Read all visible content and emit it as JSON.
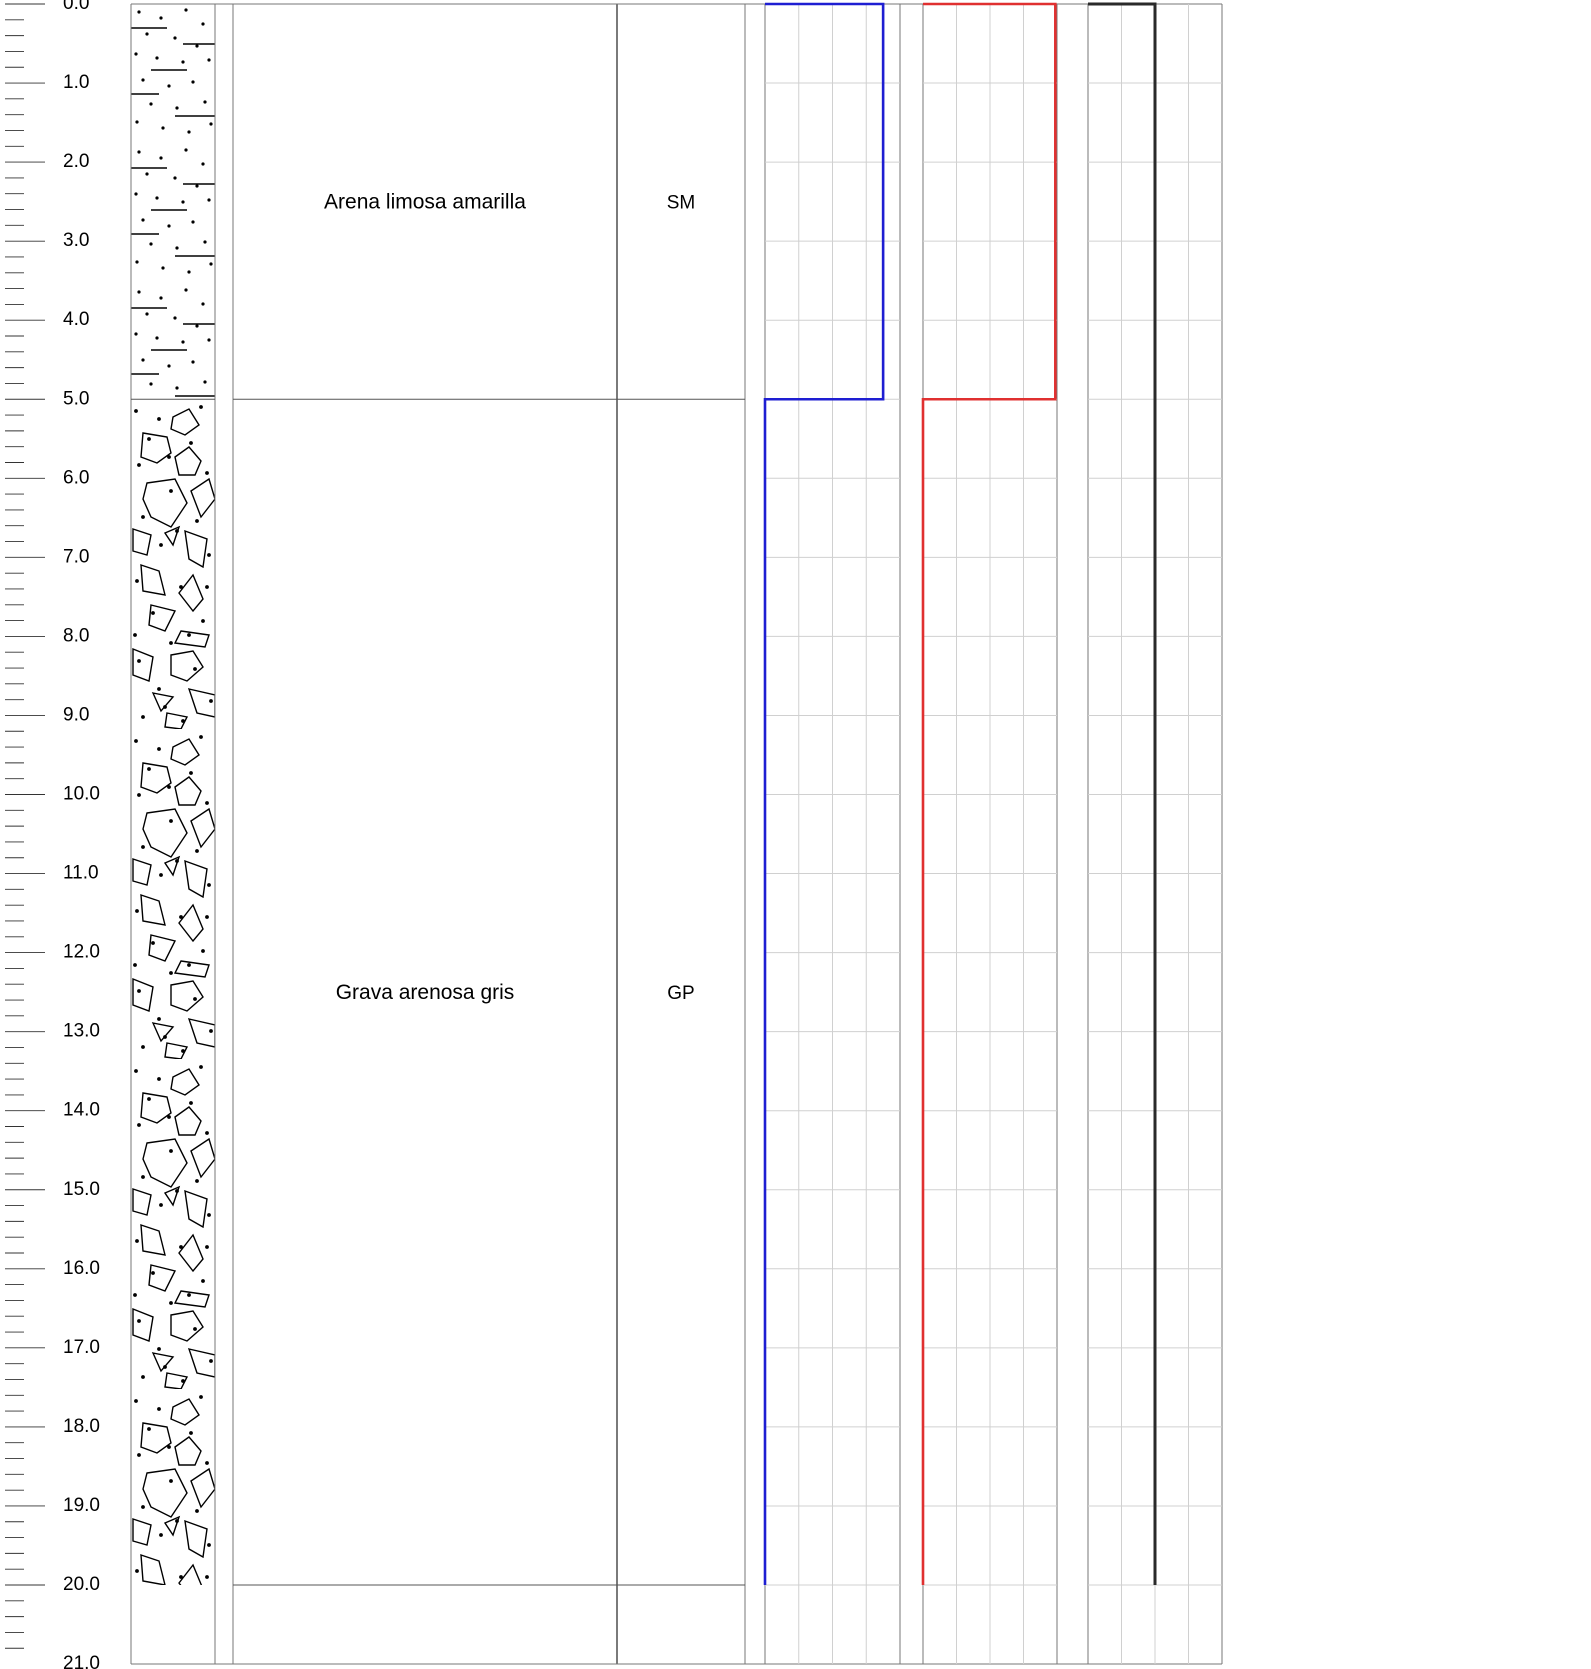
{
  "depth_scale": {
    "labels": [
      "0.0",
      "1.0",
      "2.0",
      "3.0",
      "4.0",
      "5.0",
      "6.0",
      "7.0",
      "8.0",
      "9.0",
      "10.0",
      "11.0",
      "12.0",
      "13.0",
      "14.0",
      "15.0",
      "16.0",
      "17.0",
      "18.0",
      "19.0",
      "20.0",
      "21.0"
    ],
    "max_depth": 21,
    "minor_ticks_per_meter": 5
  },
  "layers": [
    {
      "top": 0,
      "bottom": 5,
      "description": "Arena limosa amarilla",
      "uscs": "SM",
      "pattern": "silty-sand"
    },
    {
      "top": 5,
      "bottom": 20,
      "description": "Grava arenosa gris",
      "uscs": "GP",
      "pattern": "sandy-gravel"
    }
  ],
  "borehole_bottom": 20,
  "chart_data": [
    {
      "type": "line",
      "track": "track-1",
      "color": "#1e1ed2",
      "x_scale_max": 4,
      "x_grid_lines": 4,
      "steps": [
        {
          "from_depth": 0,
          "to_depth": 5,
          "value": 3.5
        },
        {
          "from_depth": 5,
          "to_depth": 20,
          "value": 0
        }
      ]
    },
    {
      "type": "line",
      "track": "track-2",
      "color": "#e03030",
      "x_scale_max": 4,
      "x_grid_lines": 4,
      "steps": [
        {
          "from_depth": 0,
          "to_depth": 5,
          "value": 3.95
        },
        {
          "from_depth": 5,
          "to_depth": 20,
          "value": 0
        }
      ]
    },
    {
      "type": "line",
      "track": "track-3",
      "color": "#2a2a2a",
      "x_scale_max": 4,
      "x_grid_lines": 4,
      "steps": [
        {
          "from_depth": 0,
          "to_depth": 20,
          "value": 2
        }
      ]
    }
  ]
}
